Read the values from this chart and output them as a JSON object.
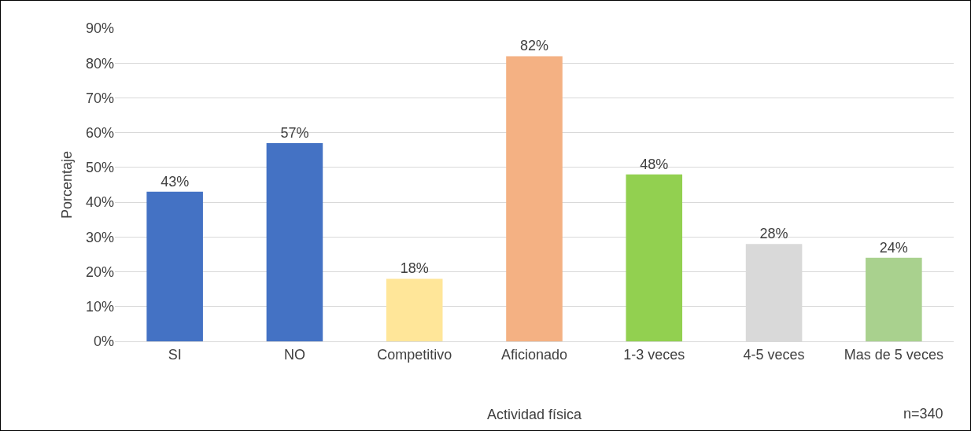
{
  "chart_data": {
    "type": "bar",
    "xlabel": "Actividad física",
    "ylabel": "Porcentaje",
    "categories": [
      "SI",
      "NO",
      "Competitivo",
      "Aficionado",
      "1-3 veces",
      "4-5 veces",
      "Mas de 5 veces"
    ],
    "values": [
      43,
      57,
      18,
      82,
      48,
      28,
      24
    ],
    "value_labels": [
      "43%",
      "57%",
      "18%",
      "82%",
      "48%",
      "28%",
      "24%"
    ],
    "colors": [
      "#4472c4",
      "#4472c4",
      "#ffe699",
      "#f4b183",
      "#92d050",
      "#d9d9d9",
      "#a9d18e"
    ],
    "ylim": [
      0,
      90
    ],
    "yticks": [
      {
        "value": 0,
        "label": "0%"
      },
      {
        "value": 10,
        "label": "10%"
      },
      {
        "value": 20,
        "label": "20%"
      },
      {
        "value": 30,
        "label": "30%"
      },
      {
        "value": 40,
        "label": "40%"
      },
      {
        "value": 50,
        "label": "50%"
      },
      {
        "value": 60,
        "label": "60%"
      },
      {
        "value": 70,
        "label": "70%"
      },
      {
        "value": 80,
        "label": "80%"
      },
      {
        "value": 90,
        "label": "90%"
      }
    ],
    "grid": "y",
    "annotations": [
      "n=340"
    ]
  }
}
